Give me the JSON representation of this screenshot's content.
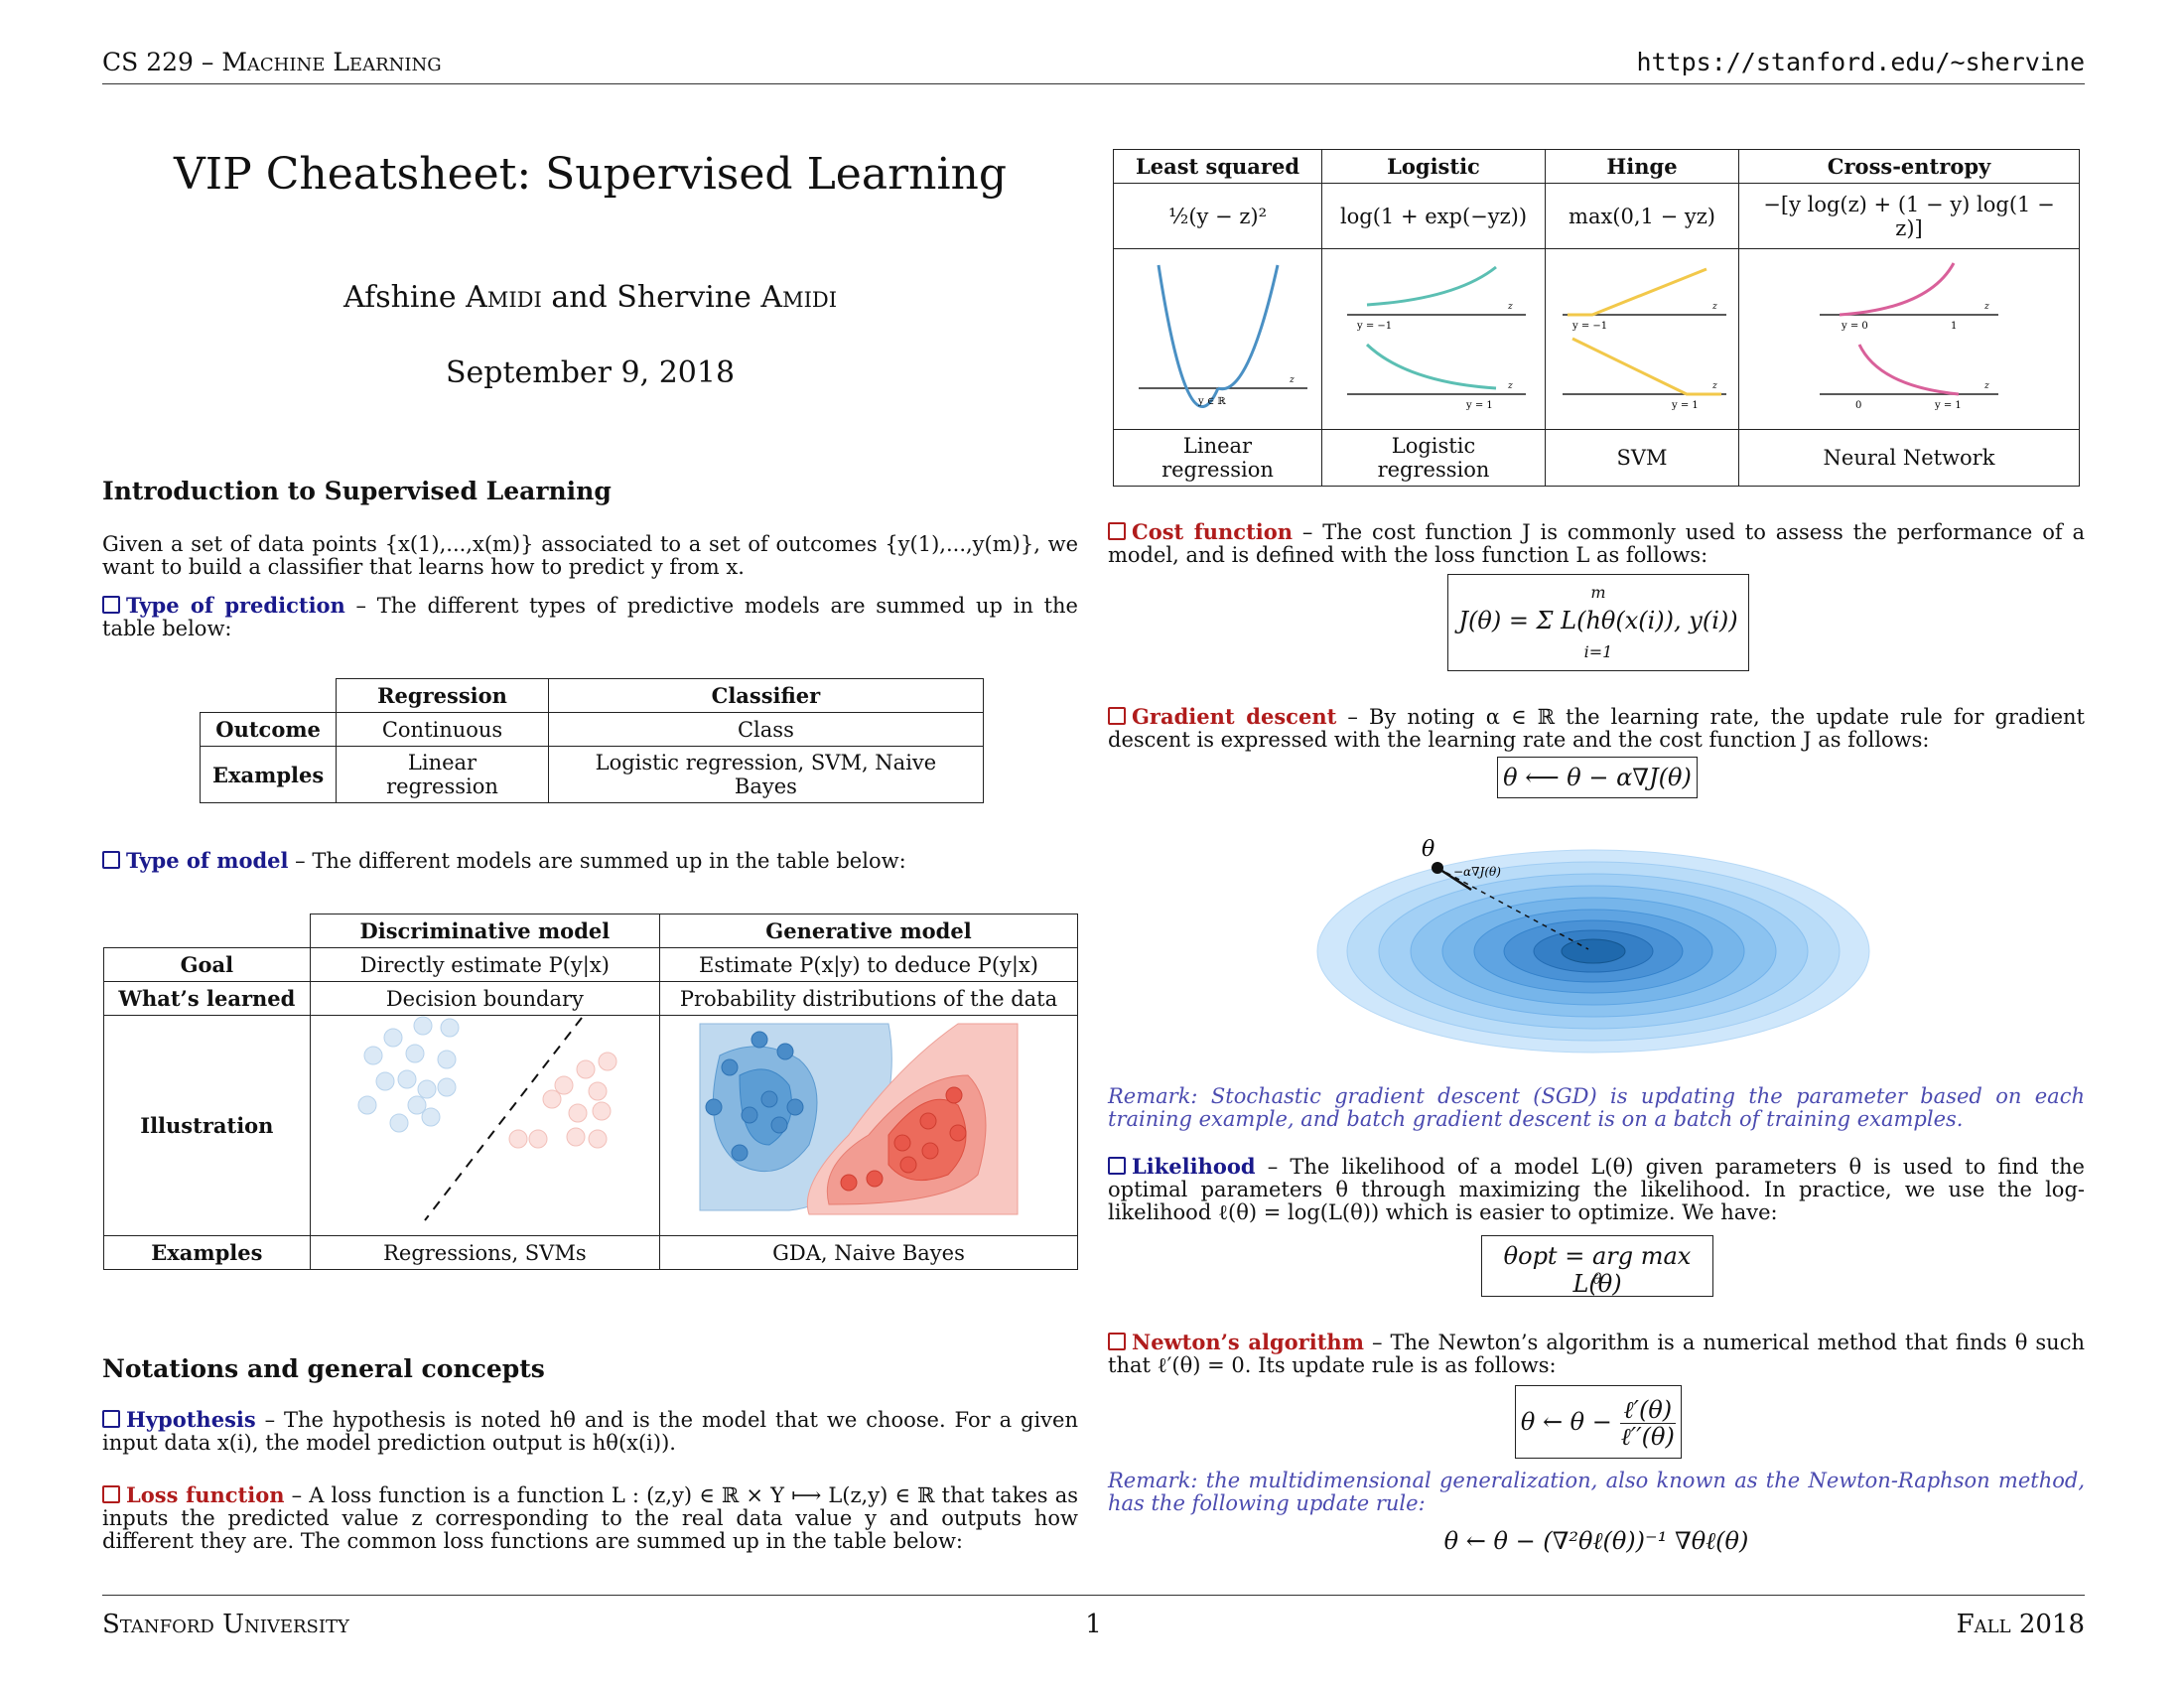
{
  "header": {
    "left": "CS 229 – Machine Learning",
    "right": "https://stanford.edu/~shervine"
  },
  "footer": {
    "left": "Stanford University",
    "center": "1",
    "right": "Fall 2018"
  },
  "title": "VIP Cheatsheet: Supervised Learning",
  "authors": {
    "first": "Afshine",
    "first_last": "Amidi",
    "and": "and",
    "second": "Shervine",
    "second_last": "Amidi"
  },
  "date": "September 9, 2018",
  "intro": {
    "heading": "Introduction to Supervised Learning",
    "para": "Given a set of data points {x(1),...,x(m)} associated to a set of outcomes {y(1),...,y(m)}, we want to build a classifier that learns how to predict y from x.",
    "type_pred_kw": "Type of prediction",
    "type_pred_text": " – The different types of predictive models are summed up in the table below:",
    "pred_table": {
      "headers": [
        "",
        "Regression",
        "Classifier"
      ],
      "rows": [
        [
          "Outcome",
          "Continuous",
          "Class"
        ],
        [
          "Examples",
          "Linear regression",
          "Logistic regression, SVM, Naive Bayes"
        ]
      ]
    },
    "type_model_kw": "Type of model",
    "type_model_text": " – The different models are summed up in the table below:",
    "model_table": {
      "headers": [
        "",
        "Discriminative model",
        "Generative model"
      ],
      "goal": [
        "Goal",
        "Directly estimate P(y|x)",
        "Estimate P(x|y) to deduce P(y|x)"
      ],
      "learned": [
        "What’s learned",
        "Decision boundary",
        "Probability distributions of the data"
      ],
      "illustration": "Illustration",
      "examples": [
        "Examples",
        "Regressions, SVMs",
        "GDA, Naive Bayes"
      ]
    }
  },
  "notations": {
    "heading": "Notations and general concepts",
    "hyp_kw": "Hypothesis",
    "hyp_text": " – The hypothesis is noted hθ and is the model that we choose. For a given input data x(i), the model prediction output is hθ(x(i)).",
    "loss_kw": "Loss function",
    "loss_text": " – A loss function is a function L : (z,y) ∈ ℝ × Y ⟼ L(z,y) ∈ ℝ that takes as inputs the predicted value z corresponding to the real data value y and outputs how different they are. The common loss functions are summed up in the table below:"
  },
  "loss_table": {
    "headers": [
      "Least squared",
      "Logistic",
      "Hinge",
      "Cross-entropy"
    ],
    "formulas": [
      "½(y − z)²",
      "log(1 + exp(−yz))",
      "max(0,1 − yz)",
      "−[y log(z) + (1 − y) log(1 − z)]"
    ],
    "footers": [
      "Linear regression",
      "Logistic regression",
      "SVM",
      "Neural Network"
    ],
    "axis_labels": {
      "z": "z",
      "y_in_r": "y ∈ ℝ",
      "y_m1": "y = −1",
      "y_1": "y = 1",
      "y_0": "y = 0",
      "zero": "0",
      "one": "1"
    }
  },
  "cost": {
    "kw": "Cost function",
    "text": " – The cost function J is commonly used to assess the performance of a model, and is defined with the loss function L as follows:",
    "eq": "J(θ) = Σ L(hθ(x(i)), y(i))",
    "sum_top": "m",
    "sum_bot": "i=1"
  },
  "gradient": {
    "kw": "Gradient descent",
    "text": " – By noting α ∈ ℝ the learning rate, the update rule for gradient descent is expressed with the learning rate and the cost function J as follows:",
    "eq": "θ ⟵ θ − α∇J(θ)",
    "theta_label": "θ",
    "step_label": "−α∇J(θ)",
    "remark": "Remark: Stochastic gradient descent (SGD) is updating the parameter based on each training example, and batch gradient descent is on a batch of training examples."
  },
  "likelihood": {
    "kw": "Likelihood",
    "text": " – The likelihood of a model L(θ) given parameters θ is used to find the optimal parameters θ through maximizing the likelihood. In practice, we use the log-likelihood ℓ(θ) = log(L(θ)) which is easier to optimize. We have:",
    "eq": "θopt = arg max L(θ)",
    "eq_sub": "θ"
  },
  "newton": {
    "kw": "Newton’s algorithm",
    "text": " – The Newton’s algorithm is a numerical method that finds θ such that ℓ′(θ) = 0. Its update rule is as follows:",
    "eq_left": "θ ← θ −",
    "eq_num": "ℓ′(θ)",
    "eq_den": "ℓ′′(θ)",
    "remark": "Remark: the multidimensional generalization, also known as the Newton-Raphson method, has the following update rule:",
    "eq2": "θ ← θ − (∇²θℓ(θ))⁻¹ ∇θℓ(θ)"
  },
  "colors": {
    "blue_kw": "#1a1a8c",
    "red_kw": "#b01c1c",
    "remark": "#4b4bb0"
  }
}
